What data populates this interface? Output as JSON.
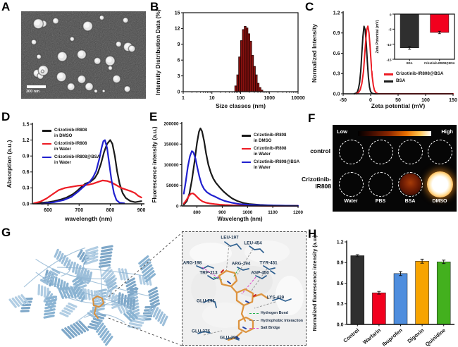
{
  "panels": {
    "a": {
      "letter": "A",
      "scale_bar_label": "300 nm"
    },
    "b": {
      "letter": "B"
    },
    "c": {
      "letter": "C",
      "legend": [
        {
          "label": "Crizotinib-IR808@BSA",
          "color": "#ed1c24"
        },
        {
          "label": "BSA",
          "color": "#1a1a1a"
        }
      ]
    },
    "d": {
      "letter": "D",
      "legend": [
        {
          "line1": "Crizotinib-IR808",
          "line2": "in DMSO",
          "color": "#1a1a1a"
        },
        {
          "line1": "Crizotinib-IR808",
          "line2": "in Water",
          "color": "#ed1c24"
        },
        {
          "line1": "Crizotinib-IR808@BSA",
          "line2": "in Water",
          "color": "#2121cf"
        }
      ]
    },
    "e": {
      "letter": "E",
      "legend": [
        {
          "line1": "Crizotinib-IR808",
          "line2": "in DMSO",
          "color": "#1a1a1a"
        },
        {
          "line1": "Crizotinib-IR808",
          "line2": "in Water",
          "color": "#ed1c24"
        },
        {
          "line1": "Crizotinib-IR808@BSA",
          "line2": "in Water",
          "color": "#2121cf"
        }
      ]
    },
    "f": {
      "letter": "F",
      "scale_low": "Low",
      "scale_high": "High",
      "rows": [
        "control",
        "Crizotinib-IR808"
      ],
      "columns": [
        "Water",
        "PBS",
        "BSA",
        "DMSO"
      ]
    },
    "g": {
      "letter": "G",
      "residues": [
        "LEU-197",
        "LEU-454",
        "ARG-198",
        "ARG-194",
        "TYR-451",
        "TRP-213",
        "ASP-450",
        "GLU-291",
        "LYS-439",
        "GLU-276",
        "GLU-293"
      ],
      "legend": [
        {
          "label": "Hydrogen Bond",
          "color": "#22b14c"
        },
        {
          "label": "Hydrophobic Interaction",
          "color": "#8a8a8a"
        },
        {
          "label": "Salt Bridge",
          "color": "#e040c8"
        }
      ]
    },
    "h": {
      "letter": "H"
    }
  },
  "chart_data": {
    "size_distribution": {
      "type": "bar",
      "xscale": "log",
      "xlabel": "Size classes (nm)",
      "ylabel": "Intensity Distribution Data (%)",
      "xlim": [
        1,
        10000
      ],
      "ylim": [
        0,
        15
      ],
      "xticks": [
        "1",
        "10",
        "100",
        "1000",
        "10000"
      ],
      "yticks": [
        "0",
        "3",
        "6",
        "9",
        "12",
        "15"
      ],
      "bars": {
        "fill": "#8b1210",
        "stroke": "#240000",
        "centers": [
          68,
          79,
          92,
          107,
          124,
          144,
          167,
          194,
          225,
          261,
          303,
          352,
          408,
          474,
          550
        ],
        "values": [
          1.1,
          3.2,
          6.6,
          9.7,
          11.8,
          12.4,
          12.1,
          11.0,
          9.6,
          6.9,
          4.8,
          3.2,
          1.6,
          0.8,
          0.3
        ]
      }
    },
    "zeta_distribution": {
      "type": "line",
      "xlabel": "Zeta potential (mV)",
      "ylabel": "Normalized Intensity",
      "xlim": [
        -50,
        150
      ],
      "ylim": [
        0,
        1.2
      ],
      "xticks": [
        "-50",
        "0",
        "50",
        "100",
        "150"
      ],
      "yticks": [
        "0.0",
        "0.3",
        "0.6",
        "0.9",
        "1.2"
      ],
      "series": [
        {
          "name": "BSA",
          "color": "#1a1a1a",
          "points": [
            [
              -30,
              0
            ],
            [
              -26,
              0.01
            ],
            [
              -24,
              0.03
            ],
            [
              -22,
              0.08
            ],
            [
              -20,
              0.17
            ],
            [
              -18,
              0.34
            ],
            [
              -16,
              0.6
            ],
            [
              -14,
              0.85
            ],
            [
              -12,
              1.0
            ],
            [
              -10,
              0.95
            ],
            [
              -8,
              0.75
            ],
            [
              -6,
              0.48
            ],
            [
              -4,
              0.24
            ],
            [
              -2,
              0.1
            ],
            [
              0,
              0.03
            ],
            [
              3,
              0.005
            ],
            [
              8,
              0
            ],
            [
              150,
              0
            ]
          ]
        },
        {
          "name": "Crizotinib-IR808@BSA",
          "color": "#ed1c24",
          "points": [
            [
              -26,
              0
            ],
            [
              -22,
              0.02
            ],
            [
              -19,
              0.06
            ],
            [
              -16,
              0.15
            ],
            [
              -13,
              0.33
            ],
            [
              -11,
              0.55
            ],
            [
              -9,
              0.78
            ],
            [
              -7,
              0.95
            ],
            [
              -5,
              1.0
            ],
            [
              -3,
              0.9
            ],
            [
              -1,
              0.7
            ],
            [
              1,
              0.45
            ],
            [
              3,
              0.25
            ],
            [
              5,
              0.12
            ],
            [
              7,
              0.05
            ],
            [
              10,
              0.015
            ],
            [
              14,
              0
            ],
            [
              150,
              0
            ]
          ]
        }
      ]
    },
    "zeta_inset": {
      "type": "bar",
      "ylabel": "Zeta Potential (mV)",
      "ylim": [
        -15,
        0
      ],
      "yticks": [
        "0",
        "-5",
        "-10",
        "-15"
      ],
      "categories": [
        "BSA",
        "Crizotinib-IR808@BSA"
      ],
      "values": [
        -11.2,
        -6.1
      ],
      "errors": [
        0.5,
        0.4
      ],
      "colors": [
        "#2f2f2f",
        "#f2001e"
      ]
    },
    "absorption": {
      "type": "line",
      "xlabel": "wavelength (nm)",
      "ylabel": "Absorption (a.u.)",
      "xlim": [
        550,
        910
      ],
      "ylim": [
        0,
        1.5
      ],
      "xticks": [
        "600",
        "700",
        "800",
        "900"
      ],
      "yticks": [
        "0.0",
        "0.3",
        "0.6",
        "0.9",
        "1.2",
        "1.5"
      ],
      "series": [
        {
          "name": "Crizotinib-IR808 in DMSO",
          "color": "#1a1a1a",
          "points": [
            [
              555,
              0.01
            ],
            [
              580,
              0.02
            ],
            [
              600,
              0.03
            ],
            [
              620,
              0.05
            ],
            [
              640,
              0.08
            ],
            [
              660,
              0.12
            ],
            [
              680,
              0.18
            ],
            [
              695,
              0.25
            ],
            [
              710,
              0.33
            ],
            [
              720,
              0.38
            ],
            [
              735,
              0.41
            ],
            [
              750,
              0.48
            ],
            [
              760,
              0.58
            ],
            [
              770,
              0.75
            ],
            [
              780,
              0.97
            ],
            [
              790,
              1.13
            ],
            [
              800,
              1.2
            ],
            [
              807,
              1.13
            ],
            [
              815,
              0.9
            ],
            [
              822,
              0.62
            ],
            [
              830,
              0.38
            ],
            [
              840,
              0.2
            ],
            [
              850,
              0.11
            ],
            [
              865,
              0.05
            ],
            [
              880,
              0.03
            ],
            [
              900,
              0.05
            ]
          ]
        },
        {
          "name": "Crizotinib-IR808 in Water",
          "color": "#ed1c24",
          "points": [
            [
              555,
              0.01
            ],
            [
              575,
              0.04
            ],
            [
              595,
              0.1
            ],
            [
              615,
              0.18
            ],
            [
              635,
              0.26
            ],
            [
              655,
              0.3
            ],
            [
              675,
              0.32
            ],
            [
              695,
              0.34
            ],
            [
              715,
              0.35
            ],
            [
              730,
              0.36
            ],
            [
              745,
              0.38
            ],
            [
              760,
              0.41
            ],
            [
              775,
              0.44
            ],
            [
              790,
              0.43
            ],
            [
              805,
              0.4
            ],
            [
              820,
              0.35
            ],
            [
              835,
              0.3
            ],
            [
              850,
              0.27
            ],
            [
              865,
              0.24
            ],
            [
              880,
              0.2
            ],
            [
              890,
              0.15
            ],
            [
              900,
              0.12
            ]
          ]
        },
        {
          "name": "Crizotinib-IR808@BSA in Water",
          "color": "#2121cf",
          "points": [
            [
              580,
              0.0
            ],
            [
              620,
              0.03
            ],
            [
              650,
              0.07
            ],
            [
              675,
              0.13
            ],
            [
              695,
              0.22
            ],
            [
              710,
              0.3
            ],
            [
              722,
              0.36
            ],
            [
              735,
              0.42
            ],
            [
              745,
              0.5
            ],
            [
              755,
              0.62
            ],
            [
              765,
              0.85
            ],
            [
              772,
              1.05
            ],
            [
              778,
              1.18
            ],
            [
              783,
              1.2
            ],
            [
              790,
              1.05
            ],
            [
              797,
              0.75
            ],
            [
              804,
              0.45
            ],
            [
              812,
              0.2
            ],
            [
              820,
              0.07
            ],
            [
              830,
              0.02
            ],
            [
              845,
              0.01
            ]
          ]
        }
      ]
    },
    "fluorescence": {
      "type": "line",
      "xlabel": "Wavelength (nm)",
      "ylabel": "Fluorescence intensity (a.u.)",
      "xlim": [
        740,
        1200
      ],
      "ylim": [
        0,
        200000
      ],
      "xticks": [
        "800",
        "900",
        "1000",
        "1100",
        "1200"
      ],
      "yticks": [
        "0",
        "50000",
        "100000",
        "150000",
        "200000"
      ],
      "series": [
        {
          "name": "Crizotinib-IR808 in DMSO",
          "color": "#1a1a1a",
          "points": [
            [
              748,
              3000
            ],
            [
              760,
              12000
            ],
            [
              770,
              30000
            ],
            [
              780,
              62000
            ],
            [
              790,
              105000
            ],
            [
              800,
              152000
            ],
            [
              808,
              180000
            ],
            [
              814,
              188000
            ],
            [
              820,
              181000
            ],
            [
              828,
              158000
            ],
            [
              836,
              128000
            ],
            [
              845,
              100000
            ],
            [
              855,
              80000
            ],
            [
              865,
              66000
            ],
            [
              875,
              56000
            ],
            [
              890,
              45000
            ],
            [
              905,
              35000
            ],
            [
              920,
              27000
            ],
            [
              940,
              18000
            ],
            [
              960,
              12000
            ],
            [
              985,
              7000
            ],
            [
              1010,
              4500
            ],
            [
              1050,
              2500
            ],
            [
              1100,
              1200
            ],
            [
              1150,
              700
            ],
            [
              1200,
              400
            ]
          ]
        },
        {
          "name": "Crizotinib-IR808 in Water",
          "color": "#ed1c24",
          "points": [
            [
              748,
              6000
            ],
            [
              758,
              14000
            ],
            [
              768,
              24000
            ],
            [
              776,
              29500
            ],
            [
              784,
              30500
            ],
            [
              792,
              27000
            ],
            [
              800,
              22000
            ],
            [
              810,
              16000
            ],
            [
              822,
              11000
            ],
            [
              835,
              8000
            ],
            [
              850,
              6000
            ],
            [
              870,
              4500
            ],
            [
              890,
              3200
            ],
            [
              910,
              2400
            ],
            [
              940,
              1500
            ],
            [
              980,
              900
            ],
            [
              1030,
              500
            ],
            [
              1100,
              250
            ],
            [
              1200,
              150
            ]
          ]
        },
        {
          "name": "Crizotinib-IR808@BSA in Water",
          "color": "#2121cf",
          "points": [
            [
              748,
              30000
            ],
            [
              756,
              60000
            ],
            [
              764,
              95000
            ],
            [
              772,
              120000
            ],
            [
              780,
              133000
            ],
            [
              786,
              130000
            ],
            [
              794,
              115000
            ],
            [
              802,
              92000
            ],
            [
              810,
              70000
            ],
            [
              818,
              53000
            ],
            [
              828,
              41000
            ],
            [
              840,
              33000
            ],
            [
              855,
              27000
            ],
            [
              870,
              23000
            ],
            [
              890,
              17000
            ],
            [
              910,
              12000
            ],
            [
              940,
              7500
            ],
            [
              970,
              4500
            ],
            [
              1000,
              3000
            ],
            [
              1050,
              1700
            ],
            [
              1100,
              1000
            ],
            [
              1150,
              600
            ],
            [
              1200,
              400
            ]
          ]
        }
      ]
    },
    "competition": {
      "type": "bar",
      "ylabel": "Normalized fluorescence intensity (a.u.)",
      "ylim": [
        0,
        1.2
      ],
      "yticks": [
        "0.0",
        "0.3",
        "0.6",
        "0.9",
        "1.2"
      ],
      "categories": [
        "Control",
        "Warfarin",
        "Ibuprofen",
        "Digoxin",
        "Quinidine"
      ],
      "values": [
        1.0,
        0.46,
        0.74,
        0.92,
        0.91
      ],
      "errors": [
        0.015,
        0.02,
        0.03,
        0.03,
        0.025
      ],
      "colors": [
        "#2f2f2f",
        "#f2001e",
        "#4f8ede",
        "#f7a400",
        "#43b01e"
      ]
    }
  }
}
